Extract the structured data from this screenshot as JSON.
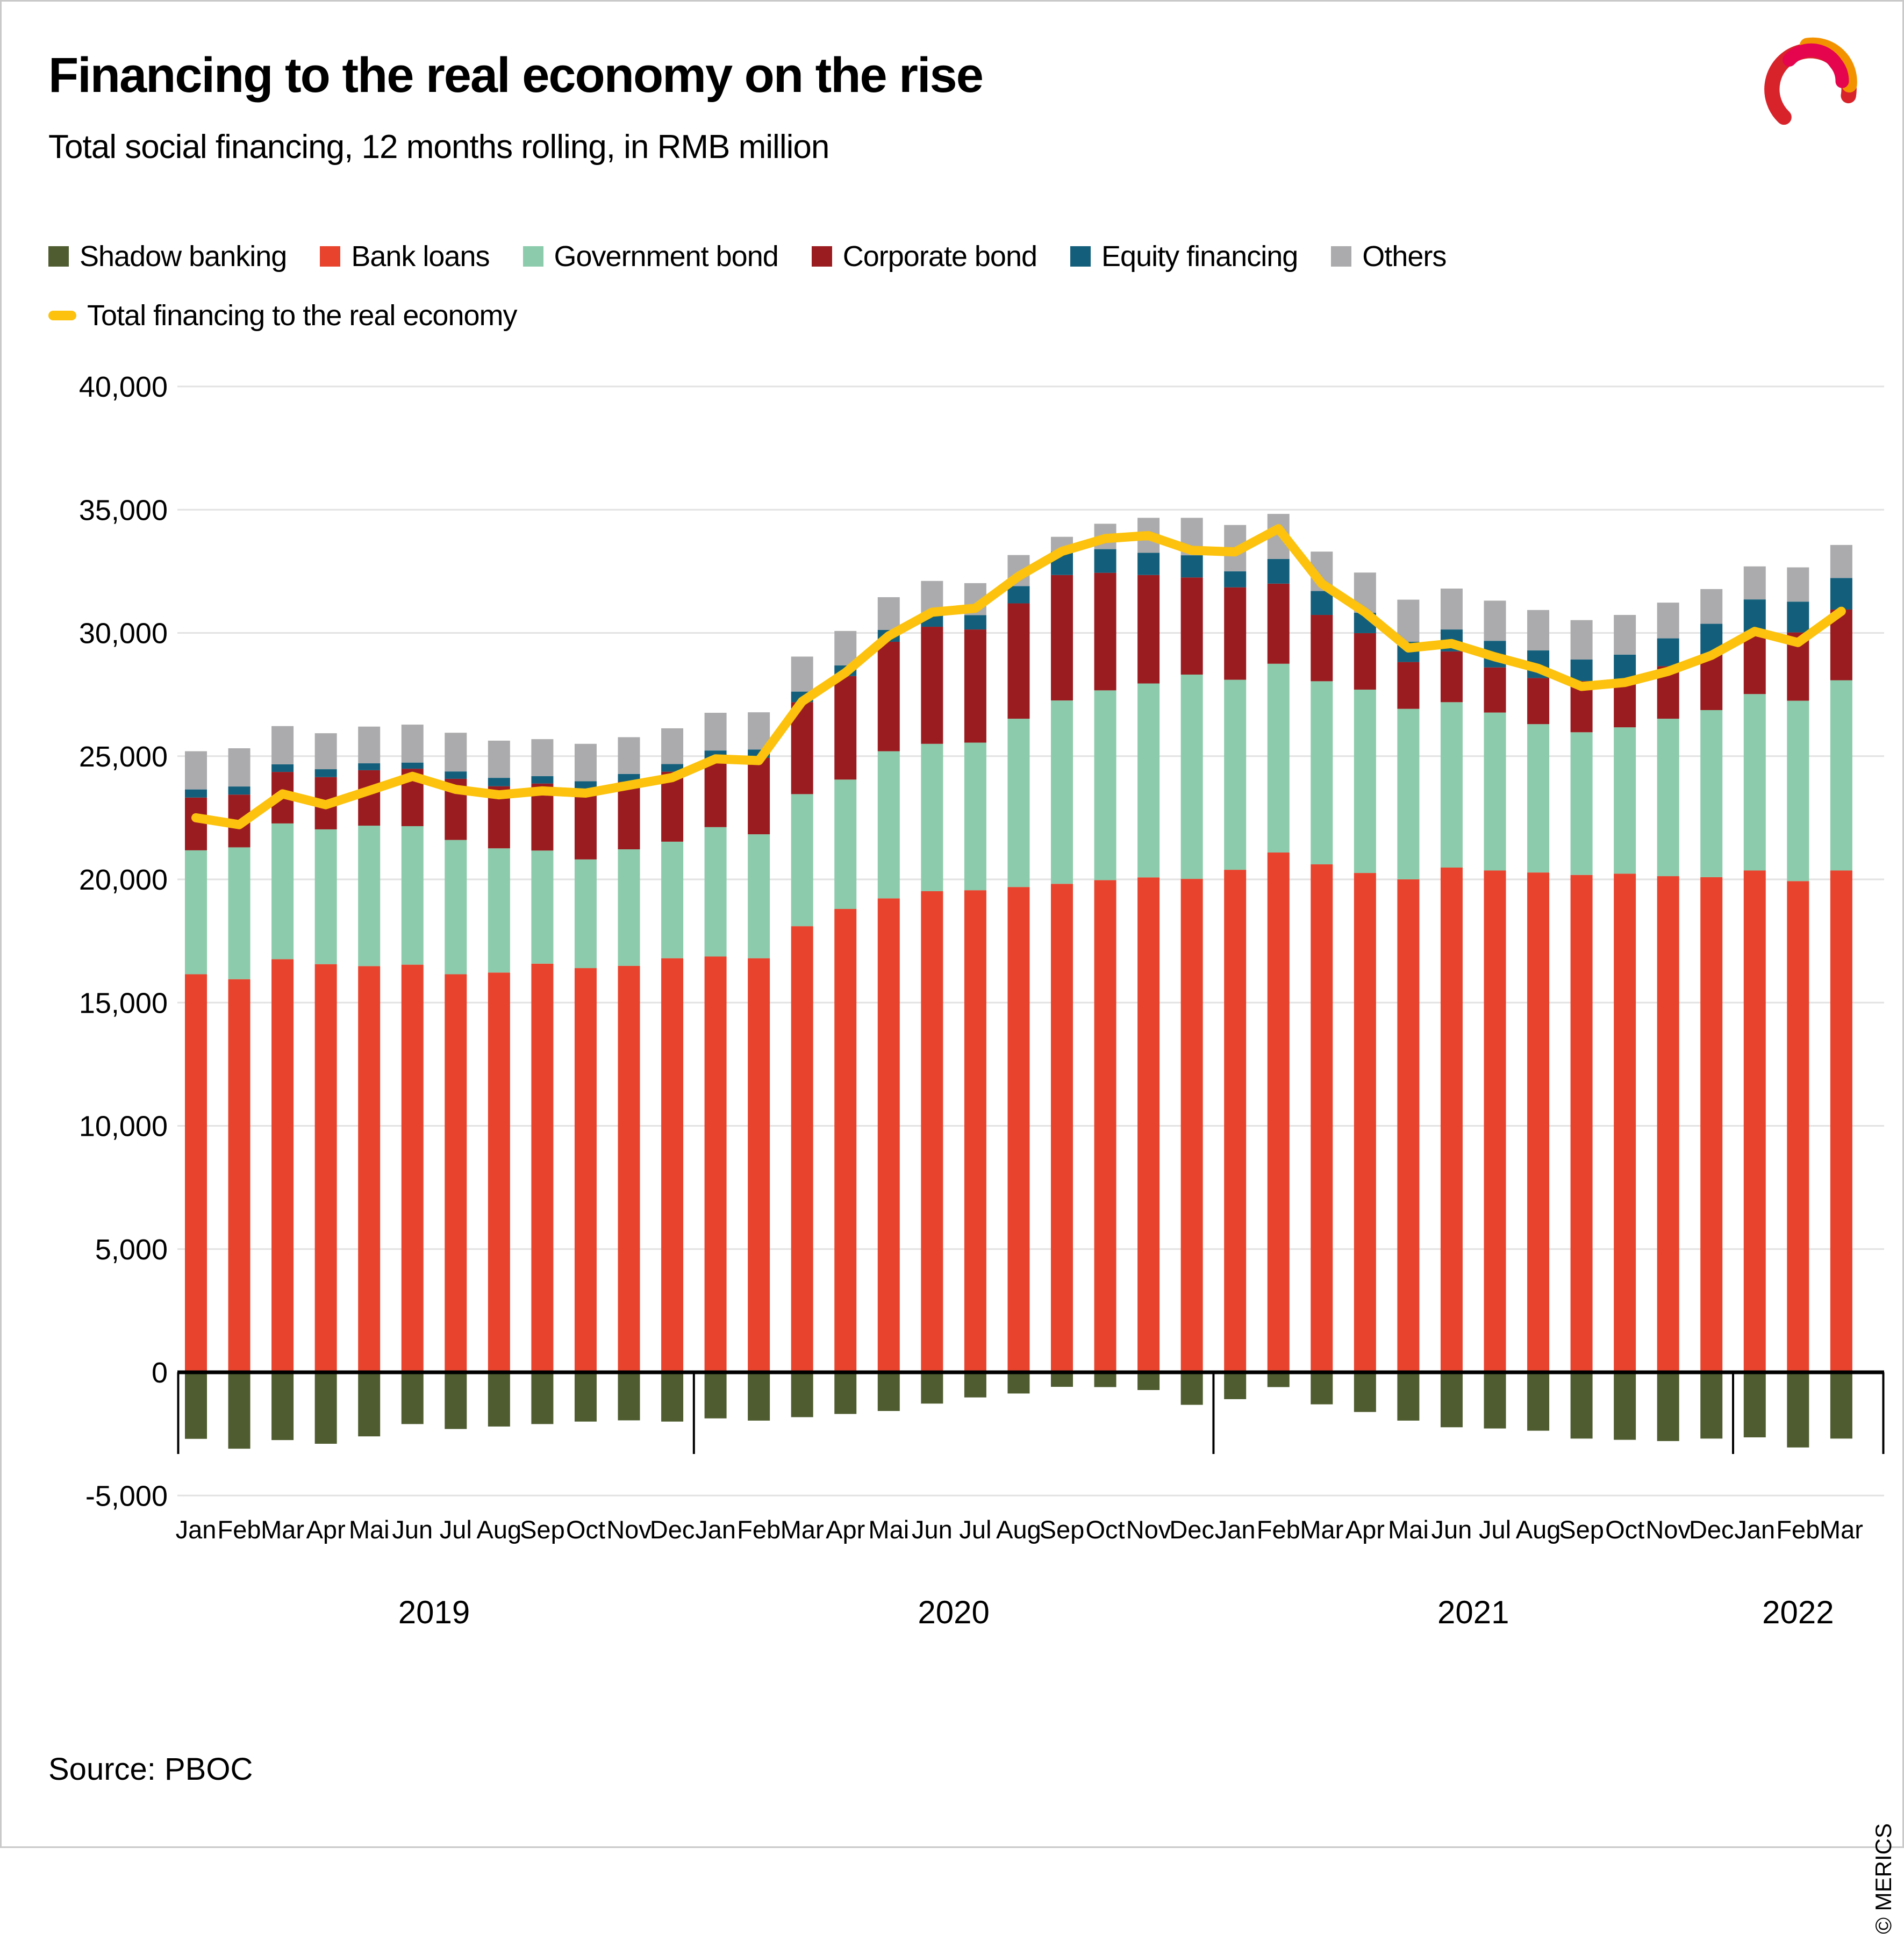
{
  "header": {
    "title": "Financing to the real economy on the rise",
    "subtitle": "Total social financing, 12 months rolling, in RMB million"
  },
  "legend": {
    "items": [
      {
        "label": "Shadow banking",
        "color": "#4e5c2f"
      },
      {
        "label": "Bank loans",
        "color": "#e8432d"
      },
      {
        "label": "Government bond",
        "color": "#8ccbab"
      },
      {
        "label": "Corporate bond",
        "color": "#9b1c20"
      },
      {
        "label": "Equity financing",
        "color": "#135f7b"
      },
      {
        "label": "Others",
        "color": "#ababad"
      }
    ],
    "line_item": {
      "label": "Total financing to the real economy",
      "color": "#fcc20d"
    }
  },
  "chart_data": {
    "type": "bar",
    "subtype": "stacked-bar-with-line",
    "title": "Total social financing, 12 months rolling, in RMB million",
    "xlabel": "",
    "ylabel": "",
    "ylim": [
      -5000,
      40000
    ],
    "grid": true,
    "legend_position": "top",
    "y_axis": {
      "tick_values": [
        40000,
        35000,
        30000,
        25000,
        20000,
        15000,
        10000,
        5000,
        0,
        -5000
      ],
      "tick_labels": [
        "40,000",
        "35,000",
        "30,000",
        "25,000",
        "20,000",
        "15,000",
        "10,000",
        "5,000",
        "0",
        "-5,000"
      ]
    },
    "categories": [
      "Jan",
      "Feb",
      "Mar",
      "Apr",
      "Mai",
      "Jun",
      "Jul",
      "Aug",
      "Sep",
      "Oct",
      "Nov",
      "Dec",
      "Jan",
      "Feb",
      "Mar",
      "Apr",
      "Mai",
      "Jun",
      "Jul",
      "Aug",
      "Sep",
      "Oct",
      "Nov",
      "Dec",
      "Jan",
      "Feb",
      "Mar",
      "Apr",
      "Mai",
      "Jun",
      "Jul",
      "Aug",
      "Sep",
      "Oct",
      "Nov",
      "Dec",
      "Jan",
      "Feb",
      "Mar"
    ],
    "year_groups": [
      {
        "label": "2019",
        "from": 0,
        "to": 11
      },
      {
        "label": "2020",
        "from": 12,
        "to": 23
      },
      {
        "label": "2021",
        "from": 24,
        "to": 35
      },
      {
        "label": "2022",
        "from": 36,
        "to": 38
      }
    ],
    "series": [
      {
        "name": "Shadow banking",
        "color": "#4e5c2f",
        "values": [
          -2700,
          -3100,
          -2750,
          -2900,
          -2600,
          -2100,
          -2300,
          -2200,
          -2100,
          -2000,
          -1950,
          -2000,
          -1870,
          -1960,
          -1820,
          -1690,
          -1570,
          -1270,
          -1020,
          -860,
          -590,
          -600,
          -720,
          -1320,
          -1090,
          -600,
          -1300,
          -1610,
          -1960,
          -2230,
          -2280,
          -2370,
          -2690,
          -2740,
          -2790,
          -2690,
          -2640,
          -3050,
          -2690
        ]
      },
      {
        "name": "Bank loans",
        "color": "#e8432d",
        "values": [
          16150,
          15950,
          16760,
          16560,
          16480,
          16540,
          16150,
          16220,
          16580,
          16400,
          16490,
          16800,
          16870,
          16800,
          18100,
          18800,
          19230,
          19520,
          19560,
          19690,
          19820,
          19970,
          20080,
          20020,
          20390,
          21090,
          20610,
          20260,
          20000,
          20480,
          20360,
          20280,
          20180,
          20230,
          20130,
          20090,
          20360,
          19930,
          20360
        ]
      },
      {
        "name": "Government bond",
        "color": "#8ccbab",
        "values": [
          5030,
          5350,
          5510,
          5470,
          5700,
          5620,
          5450,
          5040,
          4590,
          4410,
          4730,
          4730,
          5250,
          5030,
          5360,
          5250,
          5970,
          5980,
          5990,
          6830,
          7440,
          7700,
          7870,
          8290,
          7710,
          7660,
          7430,
          7440,
          6920,
          6710,
          6410,
          6020,
          5790,
          5940,
          6390,
          6780,
          7160,
          7320,
          7720
        ]
      },
      {
        "name": "Corporate bond",
        "color": "#9b1c20",
        "values": [
          2140,
          2140,
          2090,
          2120,
          2250,
          2330,
          2480,
          2520,
          2720,
          2840,
          2740,
          2840,
          2770,
          3100,
          3730,
          4200,
          4440,
          4750,
          4590,
          4680,
          5090,
          4770,
          4400,
          3940,
          3750,
          3250,
          2690,
          2290,
          1900,
          2060,
          1830,
          1870,
          2080,
          1960,
          2130,
          2280,
          2530,
          2770,
          2870
        ]
      },
      {
        "name": "Equity financing",
        "color": "#135f7b",
        "values": [
          330,
          330,
          310,
          320,
          280,
          250,
          300,
          340,
          300,
          330,
          320,
          310,
          340,
          340,
          430,
          430,
          480,
          520,
          580,
          700,
          950,
          960,
          900,
          900,
          650,
          1000,
          970,
          830,
          820,
          890,
          1080,
          1120,
          870,
          990,
          1130,
          1220,
          1310,
          1250,
          1280
        ]
      },
      {
        "name": "Others",
        "color": "#ababad",
        "values": [
          1550,
          1550,
          1550,
          1460,
          1490,
          1540,
          1570,
          1510,
          1500,
          1520,
          1490,
          1450,
          1530,
          1510,
          1420,
          1400,
          1330,
          1340,
          1300,
          1260,
          600,
          1030,
          1420,
          1520,
          1880,
          1830,
          1600,
          1630,
          1710,
          1660,
          1630,
          1640,
          1600,
          1610,
          1450,
          1410,
          1340,
          1390,
          1340
        ]
      }
    ],
    "line": {
      "name": "Total financing to the real economy",
      "color": "#fcc20d",
      "values": [
        22500,
        22220,
        23470,
        23030,
        23600,
        24180,
        23650,
        23430,
        23590,
        23500,
        23820,
        24130,
        24890,
        24820,
        27220,
        28390,
        29880,
        30840,
        31000,
        32300,
        33310,
        33830,
        33950,
        33350,
        33290,
        34230,
        32000,
        30840,
        29390,
        29570,
        29030,
        28560,
        27830,
        27990,
        28440,
        29090,
        30060,
        29610,
        30880
      ]
    }
  },
  "footer": {
    "source": "Source: PBOC",
    "copyright": "© MERICS"
  }
}
